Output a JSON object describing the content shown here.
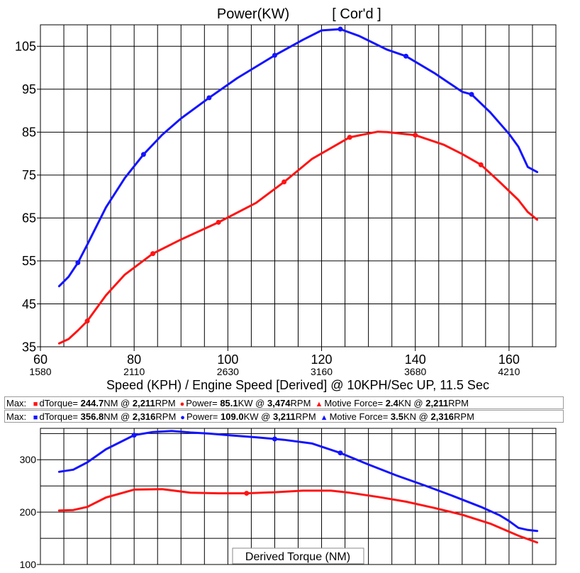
{
  "chart_data": [
    {
      "type": "line",
      "title": "Power(KW)",
      "subtitle": "[ Cor'd ]",
      "xlabel": "Speed (KPH) / Engine Speed [Derived] @ 10KPH/Sec UP, 11.5 Sec",
      "ylabel": "",
      "xlim": [
        60,
        170
      ],
      "ylim": [
        35,
        110
      ],
      "grid": true,
      "x_ticks": [
        60,
        80,
        100,
        120,
        140,
        160
      ],
      "x_ticks_secondary": [
        "1580",
        "2110",
        "2630",
        "3160",
        "3680",
        "4210"
      ],
      "y_ticks": [
        35,
        45,
        55,
        65,
        75,
        85,
        95,
        105
      ],
      "series": [
        {
          "color": "#1414ff",
          "x": [
            64,
            66,
            68,
            70,
            74,
            78,
            82,
            86,
            90,
            96,
            102,
            110,
            116,
            120,
            124,
            128,
            134,
            138,
            144,
            150,
            152,
            156,
            160,
            162,
            164,
            166
          ],
          "y": [
            49.1,
            51.3,
            54.6,
            58.8,
            67.5,
            74.3,
            79.8,
            84.4,
            88.2,
            93.0,
            97.6,
            102.9,
            106.5,
            108.7,
            109.0,
            107.4,
            104.2,
            102.7,
            98.8,
            94.4,
            93.8,
            89.6,
            84.6,
            81.6,
            76.9,
            75.7
          ],
          "markers_x": [
            68,
            82,
            96,
            110,
            124,
            138,
            152
          ]
        },
        {
          "color": "#ff1414",
          "x": [
            64,
            66,
            68,
            70,
            74,
            78,
            84,
            90,
            98,
            106,
            112,
            118,
            126,
            132,
            134,
            140,
            146,
            150,
            154,
            158,
            162,
            164,
            166
          ],
          "y": [
            35.8,
            36.8,
            38.8,
            41.0,
            47.0,
            51.8,
            56.7,
            60.0,
            64.0,
            68.5,
            73.4,
            78.8,
            83.8,
            85.1,
            85.0,
            84.3,
            82.1,
            79.9,
            77.4,
            73.4,
            69.2,
            66.4,
            64.6
          ],
          "markers_x": [
            70,
            84,
            98,
            112,
            126,
            140,
            154
          ]
        }
      ]
    },
    {
      "type": "line",
      "title": "Derived Torque (NM)",
      "xlim": [
        60,
        170
      ],
      "ylim": [
        100,
        360
      ],
      "grid": true,
      "y_ticks": [
        100,
        200,
        300
      ],
      "series": [
        {
          "color": "#1414ff",
          "x": [
            64,
            67,
            70,
            74,
            80,
            84,
            88,
            92,
            96,
            100,
            106,
            112,
            118,
            124,
            130,
            136,
            142,
            148,
            154,
            158,
            160,
            162,
            164,
            166
          ],
          "y": [
            277,
            281,
            295,
            320,
            347,
            353,
            355,
            352,
            350,
            347,
            343,
            338,
            331,
            313,
            291,
            270,
            251,
            231,
            210,
            194,
            183,
            170,
            166,
            164
          ],
          "markers_x": [
            80,
            110,
            124
          ]
        },
        {
          "color": "#ff1414",
          "x": [
            64,
            67,
            70,
            74,
            80,
            86,
            92,
            98,
            104,
            110,
            116,
            122,
            126,
            132,
            138,
            144,
            150,
            156,
            162,
            166
          ],
          "y": [
            203,
            204,
            210,
            228,
            243,
            244,
            237,
            236,
            236,
            238,
            241,
            241,
            237,
            229,
            220,
            208,
            195,
            178,
            155,
            142
          ],
          "markers_x": [
            104
          ]
        }
      ]
    }
  ],
  "legend": {
    "row1": {
      "prefix": "Max:",
      "m1": "■",
      "l1": "dTorque=",
      "v1": "244.7",
      "u1": "NM @",
      "r1": "2,211",
      "e1": "RPM",
      "m2": "●",
      "l2": "Power=",
      "v2": "85.1",
      "u2": "KW @",
      "r2": "3,474",
      "e2": "RPM",
      "m3": "▲",
      "l3": "Motive Force=",
      "v3": "2.4",
      "u3": "KN @",
      "r3": "2,211",
      "e3": "RPM",
      "color": "#ff1414"
    },
    "row2": {
      "prefix": "Max:",
      "m1": "■",
      "l1": "dTorque=",
      "v1": "356.8",
      "u1": "NM @",
      "r1": "2,316",
      "e1": "RPM",
      "m2": "●",
      "l2": "Power=",
      "v2": "109.0",
      "u2": "KW @",
      "r2": "3,211",
      "e2": "RPM",
      "m3": "▲",
      "l3": "Motive Force=",
      "v3": "3.5",
      "u3": "KN @",
      "r3": "2,316",
      "e3": "RPM",
      "color": "#1414ff"
    }
  }
}
